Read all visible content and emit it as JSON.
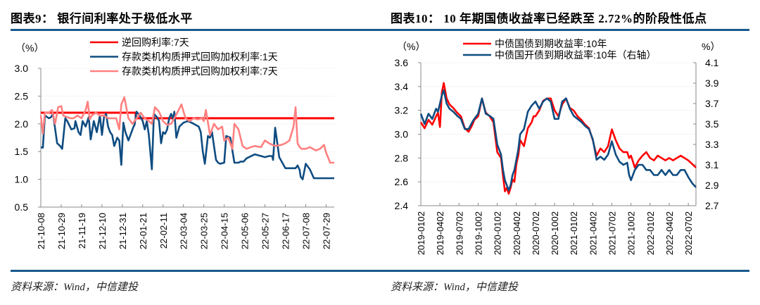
{
  "chart_data": [
    {
      "type": "line",
      "title": "图表9： 银行间利率处于极低水平",
      "unit_label": "（%）",
      "ylim": [
        0.5,
        3.0
      ],
      "yticks": [
        "3.0",
        "2.5",
        "2.0",
        "1.5",
        "1.0",
        "0.5"
      ],
      "ytick_values": [
        3.0,
        2.5,
        2.0,
        1.5,
        1.0,
        0.5
      ],
      "categories": [
        "21-10-08",
        "21-10-29",
        "21-11-19",
        "21-12-10",
        "21-12-31",
        "22-01-21",
        "22-02-11",
        "22-03-04",
        "22-03-25",
        "22-04-15",
        "22-05-06",
        "22-05-27",
        "22-06-17",
        "22-07-08",
        "22-07-29"
      ],
      "x_range_index": [
        0,
        14.4
      ],
      "grid": true,
      "legend_position": "top",
      "series": [
        {
          "name": "逆回购利率:7天",
          "color": "#ff0000",
          "x": [
            0,
            4.65,
            4.66,
            14.4
          ],
          "values": [
            2.2,
            2.2,
            2.1,
            2.1
          ]
        },
        {
          "name": "存款类机构质押式回购加权利率:1天",
          "color": "#0f4c81",
          "x": [
            0,
            0.1,
            0.2,
            0.4,
            0.5,
            0.6,
            0.8,
            0.95,
            1.05,
            1.2,
            1.3,
            1.5,
            1.65,
            1.7,
            1.85,
            1.95,
            2.05,
            2.2,
            2.35,
            2.45,
            2.6,
            2.75,
            2.9,
            3.0,
            3.1,
            3.2,
            3.3,
            3.4,
            3.5,
            3.6,
            3.75,
            3.85,
            3.95,
            4.05,
            4.15,
            4.3,
            4.4,
            4.55,
            4.6,
            4.7,
            4.85,
            5.0,
            5.1,
            5.2,
            5.3,
            5.45,
            5.55,
            5.7,
            5.8,
            5.9,
            6.0,
            6.1,
            6.2,
            6.3,
            6.4,
            6.5,
            6.55,
            6.65,
            6.8,
            7.0,
            7.2,
            7.4,
            7.6,
            7.75,
            7.85,
            7.95,
            8.05,
            8.2,
            8.3,
            8.4,
            8.5,
            8.6,
            8.7,
            8.8,
            9.0,
            9.1,
            9.3,
            9.5,
            9.7,
            9.8,
            9.95,
            10.1,
            10.5,
            10.8,
            11.0,
            11.2,
            11.35,
            11.4,
            11.5,
            11.7,
            12.0,
            12.5,
            12.6,
            12.7,
            12.75,
            12.85,
            13.0,
            13.2,
            13.4,
            13.6,
            13.8,
            13.9,
            14.0,
            14.1,
            14.2,
            14.4
          ],
          "values": [
            1.58,
            1.57,
            2.15,
            2.1,
            2.12,
            2.18,
            1.65,
            1.6,
            1.55,
            2.1,
            2.05,
            1.9,
            1.92,
            2.05,
            1.85,
            1.8,
            2.05,
            1.95,
            2.12,
            1.72,
            2.05,
            1.85,
            2.15,
            1.8,
            2.12,
            2.18,
            1.95,
            1.85,
            1.8,
            1.6,
            1.75,
            1.7,
            1.26,
            2.02,
            1.85,
            1.7,
            1.8,
            1.95,
            1.98,
            2.22,
            2.15,
            2.05,
            1.9,
            2.05,
            1.8,
            1.18,
            2.18,
            2.12,
            2.05,
            1.65,
            1.85,
            1.82,
            1.9,
            2.1,
            2.18,
            2.08,
            2.22,
            1.75,
            1.95,
            2.02,
            2.05,
            2.02,
            1.98,
            1.95,
            1.85,
            1.5,
            1.28,
            1.78,
            1.75,
            1.85,
            1.6,
            1.35,
            1.3,
            1.28,
            1.3,
            1.78,
            1.75,
            1.3,
            1.3,
            1.32,
            1.32,
            1.38,
            1.45,
            1.42,
            1.4,
            1.42,
            1.42,
            1.35,
            1.93,
            1.4,
            1.2,
            1.2,
            1.25,
            1.17,
            1.05,
            1.0,
            1.28,
            1.18,
            1.02,
            1.02,
            1.02,
            1.02,
            1.02,
            1.02,
            1.02,
            1.02
          ],
          "note": "approximate"
        },
        {
          "name": "存款类机构质押式回购加权利率:7天",
          "color": "#ff8080",
          "x": [
            0,
            0.1,
            0.2,
            0.4,
            0.55,
            0.7,
            0.85,
            1.0,
            1.1,
            1.3,
            1.45,
            1.6,
            1.8,
            2.0,
            2.2,
            2.3,
            2.4,
            2.5,
            2.7,
            2.9,
            3.1,
            3.3,
            3.5,
            3.7,
            3.85,
            3.95,
            4.1,
            4.3,
            4.5,
            4.7,
            4.9,
            5.1,
            5.3,
            5.45,
            5.6,
            5.8,
            6.0,
            6.2,
            6.4,
            6.55,
            6.7,
            6.9,
            7.1,
            7.3,
            7.5,
            7.7,
            7.9,
            8.0,
            8.1,
            8.3,
            8.5,
            8.7,
            8.9,
            9.0,
            9.2,
            9.4,
            9.5,
            9.7,
            9.9,
            10.1,
            10.3,
            10.5,
            10.8,
            11.0,
            11.2,
            11.5,
            11.8,
            12.0,
            12.2,
            12.4,
            12.5,
            12.6,
            12.7,
            12.8,
            13.0,
            13.2,
            13.5,
            13.7,
            13.9,
            14.0,
            14.2,
            14.4
          ],
          "values": [
            2.15,
            1.82,
            2.2,
            2.2,
            2.25,
            2.0,
            2.3,
            2.32,
            2.15,
            2.12,
            2.1,
            2.1,
            2.15,
            2.1,
            2.25,
            2.4,
            2.08,
            2.15,
            2.2,
            2.15,
            2.15,
            2.1,
            2.1,
            2.1,
            1.9,
            2.35,
            2.48,
            2.1,
            2.0,
            2.1,
            2.2,
            2.1,
            2.05,
            2.0,
            2.3,
            2.22,
            2.05,
            1.98,
            2.0,
            2.1,
            2.2,
            2.35,
            2.1,
            2.05,
            2.1,
            2.08,
            2.1,
            2.05,
            2.25,
            1.8,
            2.0,
            1.9,
            1.95,
            1.7,
            1.75,
            1.55,
            2.0,
            1.9,
            1.6,
            1.55,
            1.58,
            1.6,
            1.58,
            1.7,
            1.65,
            1.6,
            1.62,
            1.65,
            1.7,
            1.95,
            2.3,
            1.65,
            1.58,
            1.55,
            1.55,
            1.58,
            1.52,
            1.55,
            1.62,
            1.48,
            1.3,
            1.3
          ],
          "note": "approximate"
        }
      ],
      "source": "资料来源：Wind，中信建投"
    },
    {
      "type": "line",
      "title": "图表10： 10 年期国债收益率已经跌至 2.72%的阶段性低点",
      "unit_label_left": "（%）",
      "unit_label_right": "%）",
      "ylim": [
        2.4,
        3.6
      ],
      "y2lim": [
        2.7,
        4.1
      ],
      "yticks": [
        "3.6",
        "3.4",
        "3.2",
        "3.0",
        "2.8",
        "2.6",
        "2.4"
      ],
      "ytick_values": [
        3.6,
        3.4,
        3.2,
        3.0,
        2.8,
        2.6,
        2.4
      ],
      "y2ticks": [
        "4.1",
        "3.9",
        "3.7",
        "3.5",
        "3.3",
        "3.1",
        "2.9",
        "2.7"
      ],
      "y2tick_values": [
        4.1,
        3.9,
        3.7,
        3.5,
        3.3,
        3.1,
        2.9,
        2.7
      ],
      "categories": [
        "2019-0102",
        "2019-0402",
        "2019-0702",
        "2019-1002",
        "2020-0102",
        "2020-0402",
        "2020-0702",
        "2020-1002",
        "2021-0102",
        "2021-0402",
        "2021-0702",
        "2021-1002",
        "2022-0102",
        "2022-0402",
        "2022-0702"
      ],
      "x_range_index": [
        0,
        14.4
      ],
      "grid": true,
      "legend_position": "top",
      "series": [
        {
          "name": "中债国债到期收益率:10年",
          "axis": "left",
          "color": "#ff0000",
          "x": [
            0,
            0.2,
            0.4,
            0.6,
            0.8,
            0.9,
            1.0,
            1.1,
            1.2,
            1.35,
            1.5,
            1.7,
            1.9,
            2.1,
            2.3,
            2.5,
            2.7,
            2.8,
            3.0,
            3.2,
            3.4,
            3.6,
            3.8,
            4.0,
            4.2,
            4.3,
            4.4,
            4.5,
            4.6,
            4.7,
            4.8,
            4.9,
            5.0,
            5.1,
            5.2,
            5.4,
            5.6,
            5.8,
            5.9,
            6.0,
            6.2,
            6.4,
            6.6,
            6.8,
            7.0,
            7.2,
            7.4,
            7.6,
            7.8,
            8.0,
            8.2,
            8.4,
            8.6,
            8.8,
            9.0,
            9.2,
            9.4,
            9.6,
            9.8,
            10.0,
            10.2,
            10.4,
            10.6,
            10.8,
            10.9,
            11.0,
            11.2,
            11.4,
            11.6,
            11.8,
            12.0,
            12.2,
            12.4,
            12.6,
            12.8,
            13.0,
            13.2,
            13.4,
            13.6,
            13.8,
            14.0,
            14.2,
            14.4
          ],
          "values": [
            3.1,
            3.05,
            3.12,
            3.08,
            3.15,
            3.18,
            3.06,
            3.35,
            3.43,
            3.3,
            3.25,
            3.22,
            3.18,
            3.15,
            3.05,
            3.02,
            3.08,
            3.12,
            3.15,
            3.3,
            3.18,
            3.15,
            3.1,
            2.85,
            2.8,
            2.65,
            2.52,
            2.55,
            2.5,
            2.55,
            2.62,
            2.6,
            2.75,
            2.82,
            2.95,
            2.9,
            3.05,
            3.1,
            3.15,
            3.15,
            3.2,
            3.28,
            3.3,
            3.3,
            3.2,
            3.15,
            3.25,
            3.3,
            3.22,
            3.2,
            3.15,
            3.12,
            3.08,
            3.05,
            2.95,
            2.82,
            2.88,
            2.85,
            2.9,
            3.04,
            2.95,
            2.88,
            2.85,
            2.85,
            2.8,
            2.82,
            2.72,
            2.78,
            2.82,
            2.85,
            2.8,
            2.78,
            2.82,
            2.8,
            2.78,
            2.8,
            2.78,
            2.8,
            2.82,
            2.8,
            2.78,
            2.75,
            2.72
          ],
          "note": "approximate"
        },
        {
          "name": "中债国开债到期收益率:10年（右轴）",
          "axis": "right",
          "color": "#0f4c81",
          "x": [
            0,
            0.2,
            0.4,
            0.6,
            0.8,
            0.9,
            1.0,
            1.1,
            1.2,
            1.35,
            1.5,
            1.7,
            1.9,
            2.1,
            2.3,
            2.5,
            2.7,
            2.8,
            3.0,
            3.2,
            3.4,
            3.6,
            3.8,
            4.0,
            4.2,
            4.3,
            4.4,
            4.5,
            4.6,
            4.7,
            4.8,
            4.9,
            5.0,
            5.1,
            5.2,
            5.4,
            5.6,
            5.8,
            5.9,
            6.0,
            6.2,
            6.4,
            6.6,
            6.8,
            7.0,
            7.2,
            7.4,
            7.6,
            7.8,
            8.0,
            8.2,
            8.4,
            8.6,
            8.8,
            9.0,
            9.2,
            9.4,
            9.6,
            9.8,
            10.0,
            10.2,
            10.4,
            10.6,
            10.8,
            10.9,
            11.0,
            11.2,
            11.4,
            11.6,
            11.8,
            12.0,
            12.2,
            12.4,
            12.6,
            12.8,
            13.0,
            13.2,
            13.4,
            13.6,
            13.8,
            14.0,
            14.2,
            14.4
          ],
          "values": [
            3.6,
            3.5,
            3.6,
            3.55,
            3.65,
            3.62,
            3.7,
            3.78,
            3.83,
            3.7,
            3.65,
            3.62,
            3.58,
            3.55,
            3.45,
            3.45,
            3.52,
            3.55,
            3.6,
            3.75,
            3.6,
            3.58,
            3.55,
            3.3,
            3.2,
            3.05,
            2.95,
            2.9,
            2.85,
            2.9,
            3.0,
            3.05,
            3.15,
            3.25,
            3.4,
            3.45,
            3.62,
            3.68,
            3.7,
            3.72,
            3.65,
            3.72,
            3.75,
            3.72,
            3.55,
            3.55,
            3.72,
            3.75,
            3.65,
            3.58,
            3.55,
            3.52,
            3.48,
            3.45,
            3.35,
            3.15,
            3.18,
            3.15,
            3.2,
            3.33,
            3.2,
            3.13,
            3.1,
            3.12,
            3.0,
            2.95,
            3.05,
            3.1,
            3.1,
            3.05,
            3.05,
            3.0,
            3.0,
            3.05,
            3.0,
            3.05,
            3.0,
            3.0,
            3.05,
            3.05,
            2.98,
            2.92,
            2.88
          ],
          "note": "approximate"
        }
      ],
      "source": "资料来源：Wind，中信建投"
    }
  ]
}
